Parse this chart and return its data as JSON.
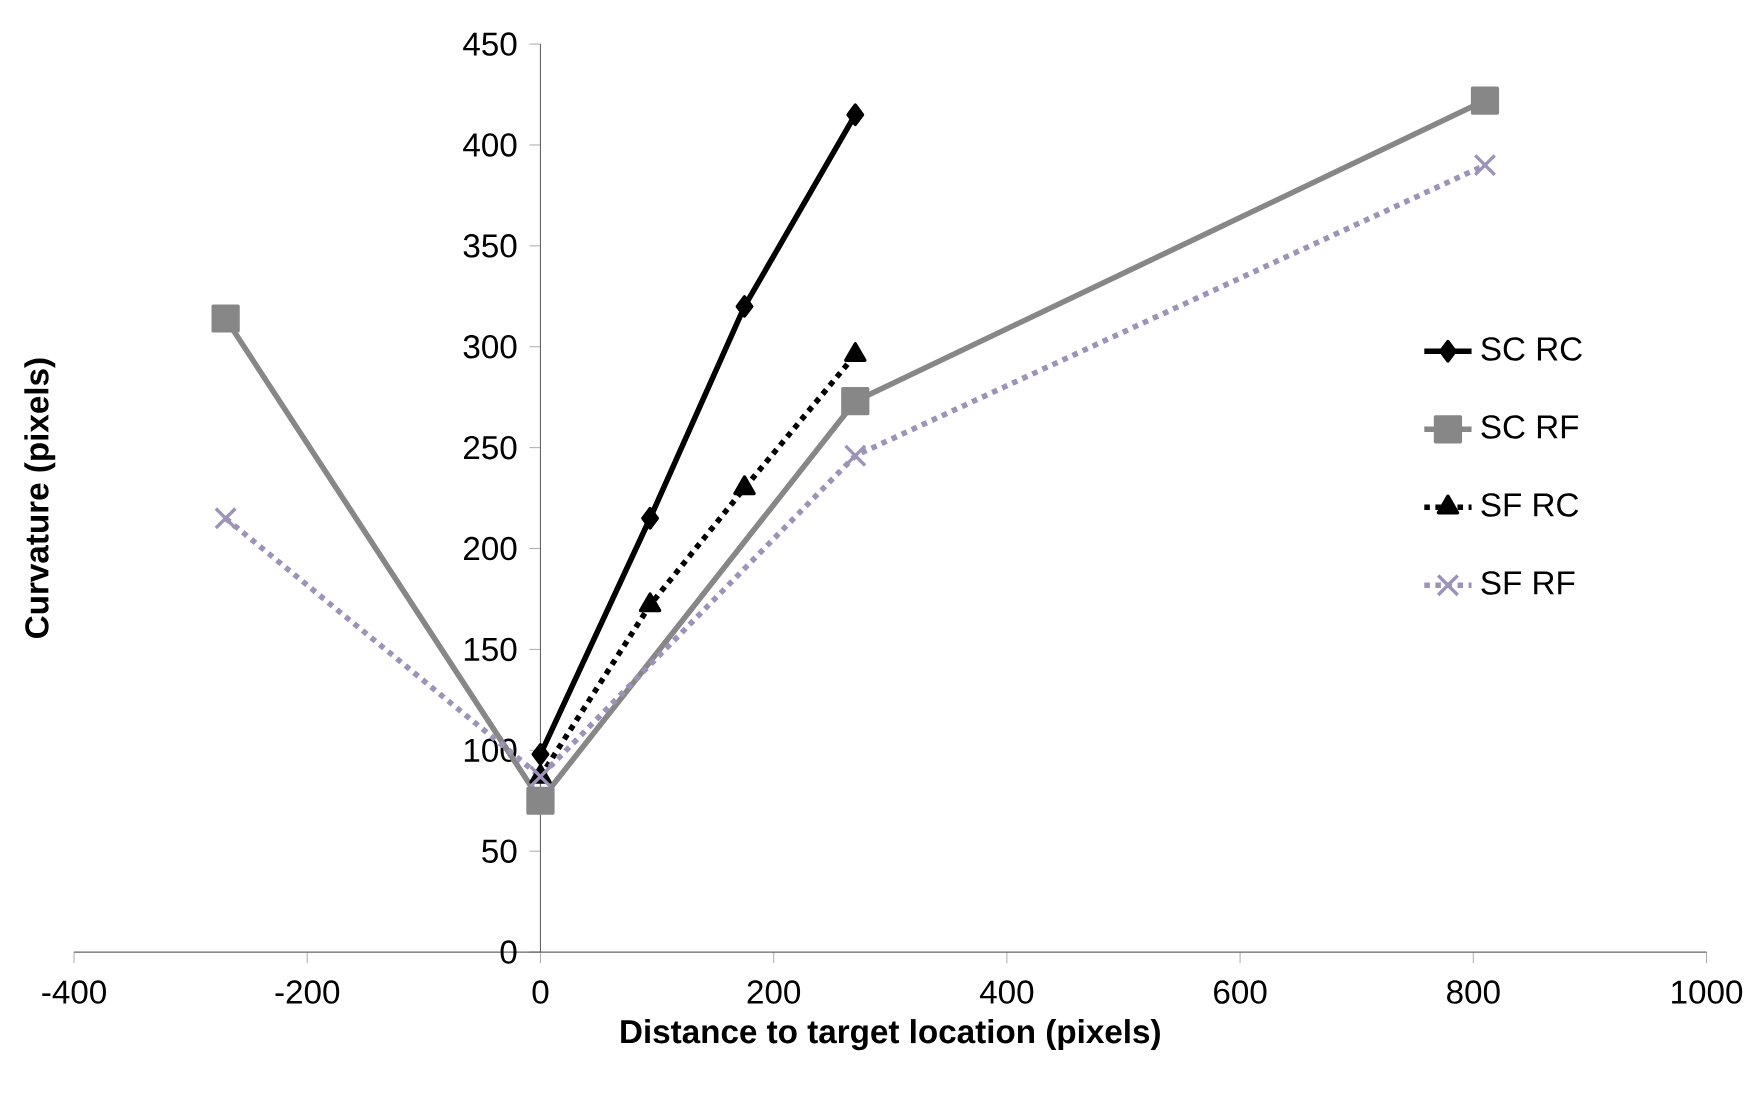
{
  "chart_data": {
    "type": "line",
    "xlabel": "Distance to target location (pixels)",
    "ylabel": "Curvature (pixels)",
    "xlim": [
      -400,
      1000
    ],
    "xticks": [
      -400,
      -200,
      0,
      200,
      400,
      600,
      800,
      1000
    ],
    "ylim": [
      0,
      450
    ],
    "yticks": [
      0,
      50,
      100,
      150,
      200,
      250,
      300,
      350,
      400,
      450
    ],
    "grid": false,
    "legend": "right",
    "series": [
      {
        "name": "SC RC",
        "color": "#000000",
        "marker": "diamond",
        "line_style": "solid",
        "x": [
          0,
          94,
          175,
          270
        ],
        "values": [
          98,
          215,
          320,
          415
        ]
      },
      {
        "name": "SC RF",
        "color": "#878787",
        "marker": "square",
        "line_style": "solid",
        "x": [
          -270,
          0,
          270,
          810
        ],
        "values": [
          314,
          75,
          273,
          422
        ]
      },
      {
        "name": "SF RC",
        "color": "#000000",
        "marker": "triangle",
        "line_style": "dotted",
        "x": [
          0,
          94,
          175,
          270
        ],
        "values": [
          87,
          172,
          230,
          296
        ]
      },
      {
        "name": "SF RF",
        "color": "#9d93b8",
        "marker": "cross",
        "line_style": "dotted",
        "x": [
          -270,
          0,
          270,
          810
        ],
        "values": [
          215,
          87,
          246,
          390
        ]
      }
    ]
  }
}
